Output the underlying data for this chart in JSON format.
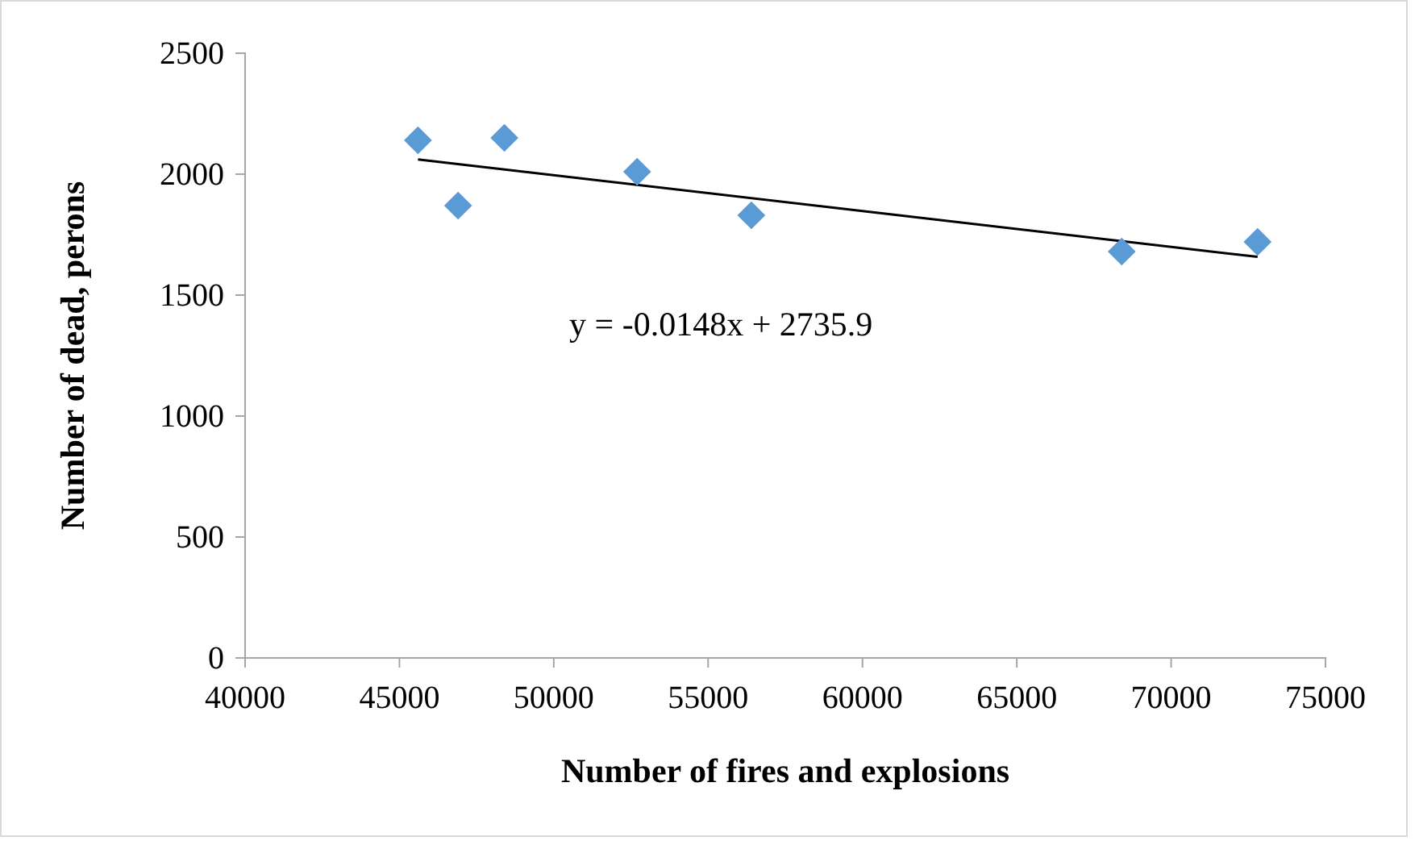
{
  "chart_data": {
    "type": "scatter",
    "xlabel": "Number of fires and explosions",
    "ylabel": "Number of dead, perons",
    "xlim": [
      40000,
      75000
    ],
    "xticks": [
      40000,
      45000,
      50000,
      55000,
      60000,
      65000,
      70000,
      75000
    ],
    "ylim": [
      0,
      2500
    ],
    "yticks": [
      0,
      500,
      1000,
      1500,
      2000,
      2500
    ],
    "grid": false,
    "marker": "diamond",
    "series": [
      {
        "color": "#5b9bd5",
        "x": [
          45600,
          46900,
          48400,
          52700,
          56400,
          68400,
          72800
        ],
        "values": [
          2140,
          1870,
          2150,
          2010,
          1830,
          1680,
          1720
        ]
      },
      {
        "type": "line",
        "color": "#000000",
        "marker": "none",
        "line_style": "solid",
        "x": [
          45600,
          72800
        ],
        "values": [
          2061,
          1658
        ]
      }
    ],
    "annotations": [
      "y = -0.0148x + 2735.9"
    ]
  }
}
